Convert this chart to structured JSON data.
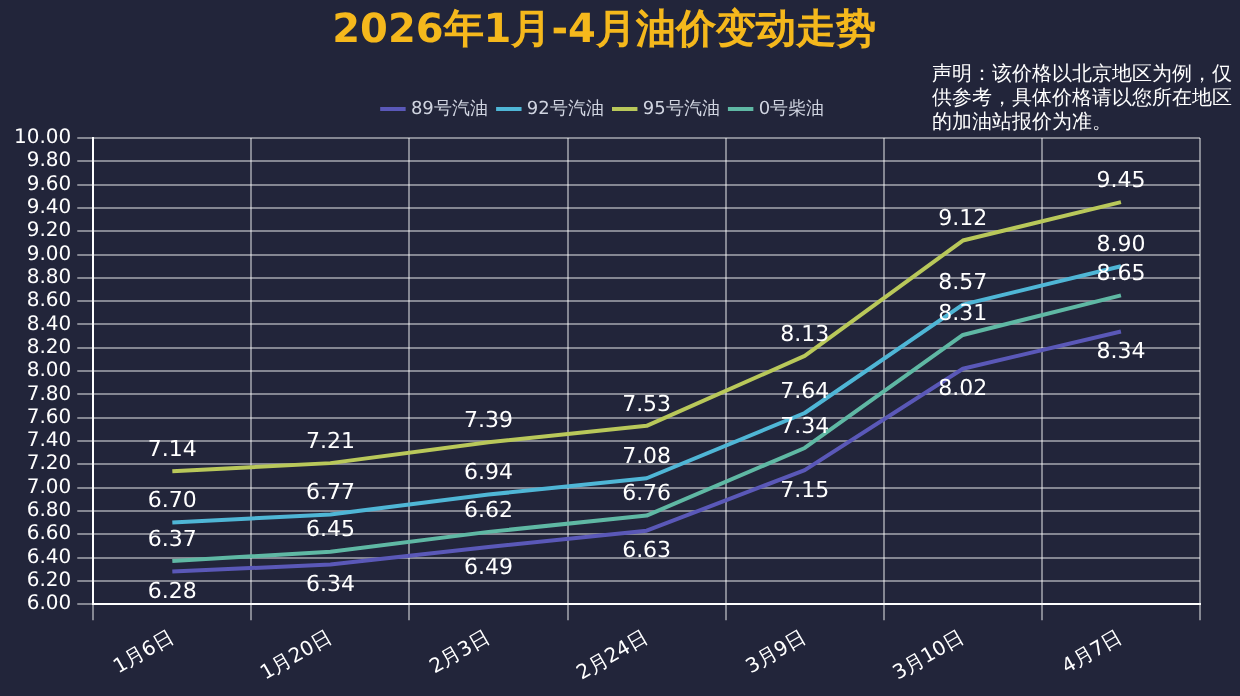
{
  "chart_data": {
    "type": "line",
    "title": "2026年1月-4月油价变动走势",
    "annotations": [
      "声明：该价格以北京地区为例，仅供参考，具体价格请以您所在地区的加油站报价为准。"
    ],
    "categories": [
      "1月6日",
      "1月20日",
      "2月3日",
      "2月24日",
      "3月9日",
      "3月10日",
      "4月7日"
    ],
    "series": [
      {
        "name": "89号汽油",
        "color": "#5a58b8",
        "values": [
          6.28,
          6.34,
          6.49,
          6.63,
          7.15,
          8.02,
          8.34
        ],
        "value_labels": [
          "6.28",
          "6.34",
          "6.49",
          "6.63",
          "7.15",
          "8.02",
          "8.34"
        ]
      },
      {
        "name": "92号汽油",
        "color": "#4fb6d6",
        "values": [
          6.7,
          6.77,
          6.94,
          7.08,
          7.64,
          8.57,
          8.9
        ],
        "value_labels": [
          "6.70",
          "6.77",
          "6.94",
          "7.08",
          "7.64",
          "8.57",
          "8.90"
        ]
      },
      {
        "name": "95号汽油",
        "color": "#b9c85a",
        "values": [
          7.14,
          7.21,
          7.39,
          7.53,
          8.13,
          9.12,
          9.45
        ],
        "value_labels": [
          "7.14",
          "7.21",
          "7.39",
          "7.53",
          "8.13",
          "9.12",
          "9.45"
        ]
      },
      {
        "name": "0号柴油",
        "color": "#5fb8a4",
        "values": [
          6.37,
          6.45,
          6.62,
          6.76,
          7.34,
          8.31,
          8.65
        ],
        "value_labels": [
          "6.37",
          "6.45",
          "6.62",
          "6.76",
          "7.34",
          "8.31",
          "8.65"
        ]
      }
    ],
    "ylim": [
      6.0,
      10.0
    ],
    "yticks": [
      {
        "value": 6.0,
        "label": "6.00"
      },
      {
        "value": 6.2,
        "label": "6.20"
      },
      {
        "value": 6.4,
        "label": "6.40"
      },
      {
        "value": 6.6,
        "label": "6.60"
      },
      {
        "value": 6.8,
        "label": "6.80"
      },
      {
        "value": 7.0,
        "label": "7.00"
      },
      {
        "value": 7.2,
        "label": "7.20"
      },
      {
        "value": 7.4,
        "label": "7.40"
      },
      {
        "value": 7.6,
        "label": "7.60"
      },
      {
        "value": 7.8,
        "label": "7.80"
      },
      {
        "value": 8.0,
        "label": "8.00"
      },
      {
        "value": 8.2,
        "label": "8.20"
      },
      {
        "value": 8.4,
        "label": "8.40"
      },
      {
        "value": 8.6,
        "label": "8.60"
      },
      {
        "value": 8.8,
        "label": "8.80"
      },
      {
        "value": 9.0,
        "label": "9.00"
      },
      {
        "value": 9.2,
        "label": "9.20"
      },
      {
        "value": 9.4,
        "label": "9.40"
      },
      {
        "value": 9.6,
        "label": "9.60"
      },
      {
        "value": 9.8,
        "label": "9.80"
      },
      {
        "value": 10.0,
        "label": "10.00"
      }
    ],
    "grid": true,
    "legend": "top",
    "marker": "none",
    "line_style": "solid"
  }
}
